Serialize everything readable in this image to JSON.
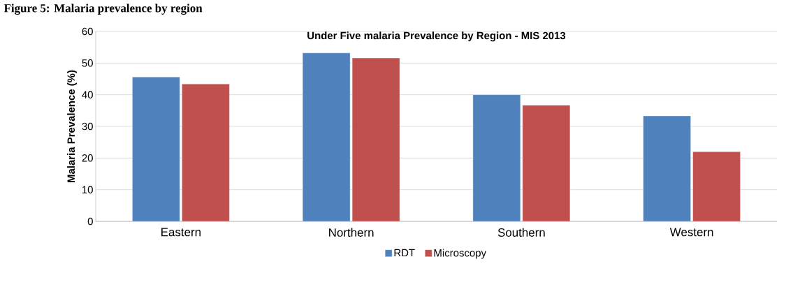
{
  "chart_data": {
    "type": "bar",
    "title": "Under Five malaria Prevalence by Region - MIS 2013",
    "ylabel": "Malaria Prevalence (%)",
    "categories": [
      "Eastern",
      "Northern",
      "Southern",
      "Western"
    ],
    "series": [
      {
        "name": "RDT",
        "color": "#4f81bd",
        "values": [
          45.6,
          53.2,
          40.0,
          33.3
        ]
      },
      {
        "name": "Microscopy",
        "color": "#c0504d",
        "values": [
          43.4,
          51.6,
          36.7,
          22.0
        ]
      }
    ],
    "ylim": [
      0,
      60
    ],
    "yticks": [
      0,
      10,
      20,
      30,
      40,
      50,
      60
    ],
    "grid": "y",
    "legend": "bottom",
    "annotations": [
      "Figure 5: Malaria prevalence by region"
    ]
  }
}
